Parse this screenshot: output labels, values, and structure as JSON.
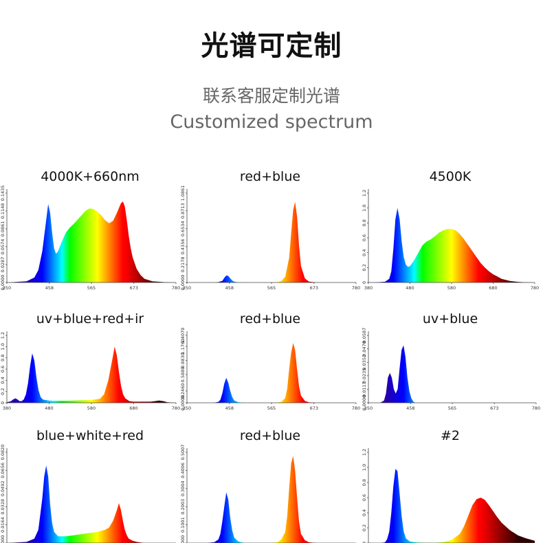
{
  "header": {
    "title": "光谱可定制",
    "subtitle_cn": "联系客服定制光谱",
    "subtitle_en": "Customized spectrum"
  },
  "chart_data": [
    {
      "type": "area",
      "title": "4000K+660nm",
      "xlim": [
        350,
        780
      ],
      "xticks": [
        "350",
        "458",
        "565",
        "673",
        "780"
      ],
      "ylim": [
        0,
        0.1435
      ],
      "yticks": [
        "0.0000",
        "0.0287",
        "0.0574",
        "0.0861",
        "0.1148",
        "0.1435"
      ],
      "x": [
        350,
        400,
        420,
        430,
        440,
        450,
        455,
        460,
        465,
        470,
        475,
        480,
        490,
        500,
        510,
        520,
        530,
        540,
        550,
        560,
        570,
        580,
        590,
        600,
        610,
        620,
        630,
        640,
        645,
        650,
        655,
        660,
        665,
        670,
        680,
        690,
        700,
        720,
        750,
        780
      ],
      "y": [
        0,
        0.002,
        0.008,
        0.02,
        0.05,
        0.1,
        0.126,
        0.112,
        0.08,
        0.055,
        0.046,
        0.05,
        0.066,
        0.08,
        0.088,
        0.094,
        0.101,
        0.108,
        0.115,
        0.119,
        0.118,
        0.114,
        0.108,
        0.1,
        0.095,
        0.099,
        0.112,
        0.127,
        0.13,
        0.122,
        0.1,
        0.075,
        0.055,
        0.04,
        0.022,
        0.012,
        0.006,
        0.002,
        0.0005,
        0
      ]
    },
    {
      "type": "area",
      "title": "red+blue",
      "xlim": [
        350,
        780
      ],
      "xticks": [
        "350",
        "458",
        "565",
        "673",
        "780"
      ],
      "ylim": [
        0,
        1.0861
      ],
      "yticks": [
        "0.0000",
        "0.2178",
        "0.4356",
        "0.6534",
        "0.8713",
        "1.0861"
      ],
      "x": [
        350,
        420,
        430,
        440,
        445,
        450,
        455,
        460,
        465,
        470,
        480,
        500,
        560,
        580,
        590,
        600,
        610,
        615,
        620,
        625,
        630,
        635,
        640,
        650,
        660,
        680,
        780
      ],
      "y": [
        0,
        0,
        0.005,
        0.02,
        0.055,
        0.085,
        0.08,
        0.05,
        0.025,
        0.01,
        0.002,
        0,
        0,
        0.005,
        0.02,
        0.07,
        0.3,
        0.6,
        0.88,
        0.98,
        0.8,
        0.45,
        0.2,
        0.05,
        0.012,
        0,
        0
      ]
    },
    {
      "type": "area",
      "title": "4500K",
      "xlim": [
        380,
        780
      ],
      "xticks": [
        "380",
        "480",
        "580",
        "680",
        "780"
      ],
      "ylim": [
        0,
        1.2
      ],
      "yticks": [
        "0",
        "0.2",
        "0.4",
        "0.6",
        "0.8",
        "1.0",
        "1.2"
      ],
      "x": [
        380,
        400,
        420,
        430,
        435,
        440,
        445,
        450,
        455,
        460,
        465,
        470,
        475,
        480,
        490,
        500,
        510,
        520,
        530,
        540,
        550,
        560,
        570,
        580,
        590,
        600,
        610,
        620,
        630,
        640,
        650,
        660,
        670,
        680,
        690,
        700,
        720,
        740,
        760,
        780
      ],
      "y": [
        0,
        0.002,
        0.01,
        0.05,
        0.15,
        0.45,
        0.85,
        1.0,
        0.85,
        0.55,
        0.34,
        0.24,
        0.21,
        0.22,
        0.3,
        0.4,
        0.5,
        0.55,
        0.58,
        0.62,
        0.67,
        0.7,
        0.72,
        0.72,
        0.7,
        0.65,
        0.58,
        0.5,
        0.42,
        0.34,
        0.26,
        0.2,
        0.15,
        0.11,
        0.08,
        0.05,
        0.02,
        0.008,
        0.002,
        0
      ]
    },
    {
      "type": "area",
      "title": "uv+blue+red+ir",
      "xlim": [
        380,
        780
      ],
      "xticks": [
        "380",
        "480",
        "580",
        "680",
        "780"
      ],
      "ylim": [
        0,
        1.2
      ],
      "yticks": [
        "0",
        "0.2",
        "0.4",
        "0.6",
        "0.8",
        "1.0",
        "1.2"
      ],
      "x": [
        380,
        390,
        395,
        400,
        405,
        410,
        415,
        420,
        425,
        430,
        435,
        440,
        445,
        450,
        455,
        460,
        465,
        470,
        480,
        490,
        500,
        520,
        540,
        560,
        580,
        600,
        610,
        620,
        630,
        635,
        640,
        645,
        650,
        655,
        660,
        670,
        680,
        700,
        720,
        730,
        740,
        750,
        760,
        780
      ],
      "y": [
        0.01,
        0.03,
        0.06,
        0.08,
        0.06,
        0.03,
        0.03,
        0.06,
        0.15,
        0.35,
        0.65,
        0.88,
        0.75,
        0.45,
        0.22,
        0.1,
        0.06,
        0.05,
        0.04,
        0.035,
        0.035,
        0.035,
        0.04,
        0.045,
        0.05,
        0.07,
        0.15,
        0.4,
        0.8,
        1.0,
        0.85,
        0.55,
        0.3,
        0.15,
        0.08,
        0.03,
        0.02,
        0.02,
        0.02,
        0.03,
        0.04,
        0.03,
        0.01,
        0
      ]
    },
    {
      "type": "area",
      "title": "red+blue",
      "xlim": [
        350,
        780
      ],
      "xticks": [
        "350",
        "458",
        "565",
        "673",
        "780"
      ],
      "ylim": [
        0,
        1.407
      ],
      "yticks": [
        "0.0000",
        "0.2460",
        "0.5880",
        "0.8830",
        "1.1760",
        "1.4070"
      ],
      "x": [
        350,
        410,
        420,
        430,
        435,
        440,
        445,
        450,
        455,
        460,
        465,
        470,
        480,
        490,
        500,
        560,
        580,
        590,
        600,
        605,
        610,
        615,
        620,
        625,
        630,
        635,
        640,
        650,
        660,
        680,
        780
      ],
      "y": [
        0,
        0,
        0.005,
        0.02,
        0.06,
        0.2,
        0.4,
        0.52,
        0.42,
        0.25,
        0.12,
        0.05,
        0.015,
        0.005,
        0,
        0,
        0.005,
        0.02,
        0.1,
        0.3,
        0.7,
        1.05,
        1.25,
        1.1,
        0.7,
        0.35,
        0.15,
        0.04,
        0.01,
        0,
        0
      ]
    },
    {
      "type": "area",
      "title": "uv+blue",
      "xlim": [
        350,
        780
      ],
      "xticks": [
        "350",
        "458",
        "565",
        "673",
        "780"
      ],
      "ylim": [
        0,
        0.0587
      ],
      "yticks": [
        "0.0000",
        "0.0117",
        "0.0235",
        "0.0352",
        "0.0470",
        "0.0587"
      ],
      "x": [
        350,
        380,
        390,
        395,
        400,
        405,
        410,
        415,
        420,
        425,
        430,
        435,
        440,
        445,
        450,
        455,
        460,
        465,
        470,
        480,
        500,
        780
      ],
      "y": [
        0,
        0,
        0.002,
        0.008,
        0.022,
        0.026,
        0.022,
        0.012,
        0.008,
        0.012,
        0.03,
        0.046,
        0.05,
        0.04,
        0.022,
        0.01,
        0.004,
        0.001,
        0,
        0,
        0,
        0
      ]
    },
    {
      "type": "area",
      "title": "blue+white+red",
      "xlim": [
        350,
        780
      ],
      "xticks": [],
      "ylim": [
        0,
        0.082
      ],
      "yticks": [
        "0.0000",
        "0.0164",
        "0.0328",
        "0.0492",
        "0.0656",
        "0.0820"
      ],
      "x": [
        350,
        400,
        420,
        430,
        440,
        445,
        450,
        455,
        460,
        465,
        470,
        480,
        490,
        500,
        520,
        540,
        560,
        580,
        600,
        610,
        620,
        630,
        635,
        640,
        645,
        650,
        655,
        660,
        670,
        680,
        700,
        720,
        780
      ],
      "y": [
        0,
        0.001,
        0.004,
        0.012,
        0.04,
        0.06,
        0.07,
        0.06,
        0.035,
        0.018,
        0.01,
        0.006,
        0.006,
        0.006,
        0.007,
        0.008,
        0.009,
        0.01,
        0.012,
        0.014,
        0.02,
        0.03,
        0.036,
        0.03,
        0.02,
        0.012,
        0.007,
        0.004,
        0.002,
        0.001,
        0,
        0,
        0
      ]
    },
    {
      "type": "area",
      "title": "red+blue",
      "xlim": [
        350,
        780
      ],
      "xticks": [],
      "ylim": [
        0,
        0.5007
      ],
      "yticks": [
        "0.0000",
        "0.1001",
        "0.2003",
        "0.3004",
        "0.4006",
        "0.5007"
      ],
      "x": [
        350,
        400,
        420,
        430,
        435,
        440,
        445,
        450,
        455,
        460,
        465,
        470,
        480,
        490,
        500,
        560,
        580,
        590,
        600,
        605,
        610,
        615,
        620,
        625,
        630,
        635,
        640,
        650,
        660,
        680,
        780
      ],
      "y": [
        0,
        0,
        0.005,
        0.02,
        0.05,
        0.12,
        0.2,
        0.28,
        0.24,
        0.14,
        0.07,
        0.03,
        0.01,
        0.003,
        0,
        0,
        0.005,
        0.02,
        0.06,
        0.15,
        0.3,
        0.44,
        0.48,
        0.4,
        0.25,
        0.12,
        0.05,
        0.015,
        0.004,
        0,
        0
      ]
    },
    {
      "type": "area",
      "title": "#2",
      "xlim": [
        380,
        780
      ],
      "xticks": [],
      "ylim": [
        0,
        1.2
      ],
      "yticks": [
        "0",
        "0.2",
        "0.4",
        "0.6",
        "0.8",
        "1.0",
        "1.2"
      ],
      "x": [
        380,
        410,
        420,
        425,
        430,
        435,
        440,
        445,
        450,
        455,
        460,
        465,
        470,
        480,
        500,
        520,
        540,
        560,
        580,
        600,
        610,
        620,
        630,
        640,
        650,
        660,
        670,
        680,
        690,
        700,
        720,
        740,
        760,
        780
      ],
      "y": [
        0,
        0,
        0.01,
        0.05,
        0.15,
        0.4,
        0.75,
        0.98,
        0.95,
        0.65,
        0.35,
        0.15,
        0.06,
        0.02,
        0.005,
        0.002,
        0.003,
        0.01,
        0.04,
        0.12,
        0.22,
        0.36,
        0.5,
        0.58,
        0.6,
        0.57,
        0.5,
        0.42,
        0.34,
        0.27,
        0.17,
        0.1,
        0.06,
        0.03
      ]
    }
  ]
}
